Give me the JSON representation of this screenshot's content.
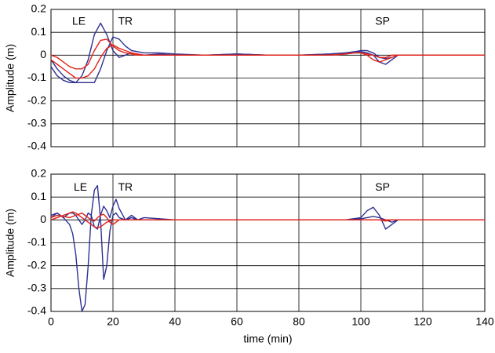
{
  "chart_data": [
    {
      "type": "line",
      "ylabel": "Amplitude (m)",
      "xlim": [
        0,
        140
      ],
      "xticks": [
        0,
        20,
        40,
        60,
        80,
        100,
        120,
        140
      ],
      "ylim": [
        -0.4,
        0.2
      ],
      "yticks": [
        0.2,
        0.1,
        0,
        -0.1,
        -0.2,
        -0.3,
        -0.4
      ],
      "grid": true,
      "annotations": [
        {
          "text": "LE",
          "x": 9,
          "y": 0.145
        },
        {
          "text": "TR",
          "x": 24,
          "y": 0.145
        },
        {
          "text": "SP",
          "x": 107,
          "y": 0.145
        }
      ],
      "x": [
        0,
        2,
        4,
        6,
        8,
        10,
        12,
        14,
        16,
        18,
        20,
        22,
        24,
        26,
        28,
        30,
        35,
        40,
        50,
        60,
        70,
        80,
        90,
        95,
        98,
        100,
        102,
        104,
        106,
        108,
        110,
        112,
        115,
        120,
        130,
        140
      ],
      "series": [
        {
          "color": "#2e3192",
          "values": [
            -0.05,
            -0.09,
            -0.11,
            -0.12,
            -0.12,
            -0.09,
            -0.02,
            0.09,
            0.14,
            0.09,
            0.02,
            -0.01,
            0,
            0.01,
            0.005,
            0,
            0.005,
            0,
            0,
            0.005,
            0,
            0,
            0.005,
            0.01,
            0.015,
            0.015,
            0.01,
            0,
            -0.03,
            -0.04,
            -0.02,
            0,
            0,
            0,
            0,
            0
          ]
        },
        {
          "color": "#2e3192",
          "values": [
            -0.02,
            -0.06,
            -0.09,
            -0.11,
            -0.12,
            -0.12,
            -0.12,
            -0.12,
            -0.06,
            0.02,
            0.08,
            0.07,
            0.04,
            0.02,
            0.015,
            0.01,
            0.01,
            0.005,
            0,
            0.005,
            0,
            0,
            0.005,
            0.01,
            0.015,
            0.02,
            0.02,
            0.01,
            -0.01,
            -0.015,
            -0.01,
            0,
            0,
            0,
            0,
            0
          ]
        },
        {
          "color": "#e2231a",
          "values": [
            0,
            -0.01,
            -0.03,
            -0.05,
            -0.06,
            -0.06,
            -0.04,
            0.02,
            0.065,
            0.07,
            0.04,
            0.02,
            0.01,
            0.005,
            0,
            0,
            0,
            0,
            0,
            0,
            0,
            0,
            0,
            0.005,
            0.01,
            0.01,
            0.005,
            0,
            -0.01,
            -0.01,
            0,
            0,
            0,
            0,
            0,
            0
          ]
        },
        {
          "color": "#e2231a",
          "values": [
            -0.02,
            -0.04,
            -0.06,
            -0.08,
            -0.1,
            -0.1,
            -0.09,
            -0.06,
            -0.01,
            0.03,
            0.045,
            0.03,
            0.02,
            0.01,
            0.005,
            0,
            0,
            0,
            0,
            0,
            0,
            0,
            0,
            0.005,
            0.01,
            0.01,
            0,
            -0.02,
            -0.03,
            -0.02,
            -0.01,
            0,
            0,
            0,
            0,
            0
          ]
        }
      ]
    },
    {
      "type": "line",
      "ylabel": "Amplitude (m)",
      "xlabel": "time (min)",
      "xlim": [
        0,
        140
      ],
      "xticks": [
        0,
        20,
        40,
        60,
        80,
        100,
        120,
        140
      ],
      "ylim": [
        -0.4,
        0.2
      ],
      "yticks": [
        0.2,
        0.1,
        0,
        -0.1,
        -0.2,
        -0.3,
        -0.4
      ],
      "grid": true,
      "annotations": [
        {
          "text": "LE",
          "x": 9.5,
          "y": 0.14
        },
        {
          "text": "TR",
          "x": 24,
          "y": 0.14
        },
        {
          "text": "SP",
          "x": 107,
          "y": 0.14
        }
      ],
      "x": [
        0,
        2,
        4,
        6,
        7,
        8,
        9,
        10,
        11,
        12,
        13,
        14,
        15,
        16,
        17,
        18,
        19,
        20,
        21,
        22,
        24,
        26,
        28,
        30,
        35,
        40,
        60,
        80,
        95,
        100,
        102,
        104,
        106,
        108,
        110,
        112,
        115,
        120,
        140
      ],
      "series": [
        {
          "color": "#2e3192",
          "values": [
            0.01,
            0.03,
            0.01,
            -0.02,
            -0.06,
            -0.15,
            -0.3,
            -0.4,
            -0.37,
            -0.2,
            0.02,
            0.13,
            0.15,
            0,
            -0.26,
            -0.2,
            -0.05,
            0.02,
            0.03,
            0.01,
            0,
            0.01,
            0,
            0,
            0,
            0,
            0,
            0,
            0,
            0.01,
            0.04,
            0.055,
            0.02,
            -0.04,
            -0.02,
            0,
            0,
            0,
            0
          ]
        },
        {
          "color": "#2e3192",
          "values": [
            0.02,
            0.03,
            0.01,
            0.03,
            0.03,
            0.02,
            0,
            -0.02,
            0,
            0.03,
            0.02,
            -0.03,
            -0.04,
            0.02,
            0.06,
            0.04,
            0.01,
            0.06,
            0.09,
            0.05,
            0,
            0.02,
            0,
            0.01,
            0.005,
            0,
            0,
            0,
            0,
            0.005,
            0.01,
            0.015,
            0.01,
            0,
            -0.01,
            0,
            0,
            0,
            0
          ]
        },
        {
          "color": "#e2231a",
          "values": [
            0,
            0.01,
            0.02,
            0.03,
            0.035,
            0.03,
            0.02,
            0.01,
            0,
            -0.01,
            -0.02,
            -0.03,
            -0.035,
            -0.03,
            -0.02,
            -0.01,
            -0.005,
            0,
            0,
            0,
            0,
            0,
            0,
            0,
            0,
            0,
            0,
            0,
            0,
            0,
            0,
            0,
            0,
            -0.005,
            0,
            0,
            0,
            0,
            0
          ]
        },
        {
          "color": "#e2231a",
          "values": [
            0.01,
            0.02,
            0.015,
            0.01,
            0.015,
            0.02,
            0.025,
            0.03,
            0.02,
            0.01,
            0,
            -0.005,
            0.01,
            0.02,
            0.025,
            0.01,
            -0.01,
            -0.02,
            -0.01,
            0,
            0,
            0,
            0,
            0,
            0,
            0,
            0,
            0,
            0,
            0,
            0,
            0,
            0,
            0,
            0,
            0,
            0,
            0,
            0
          ]
        }
      ]
    }
  ]
}
